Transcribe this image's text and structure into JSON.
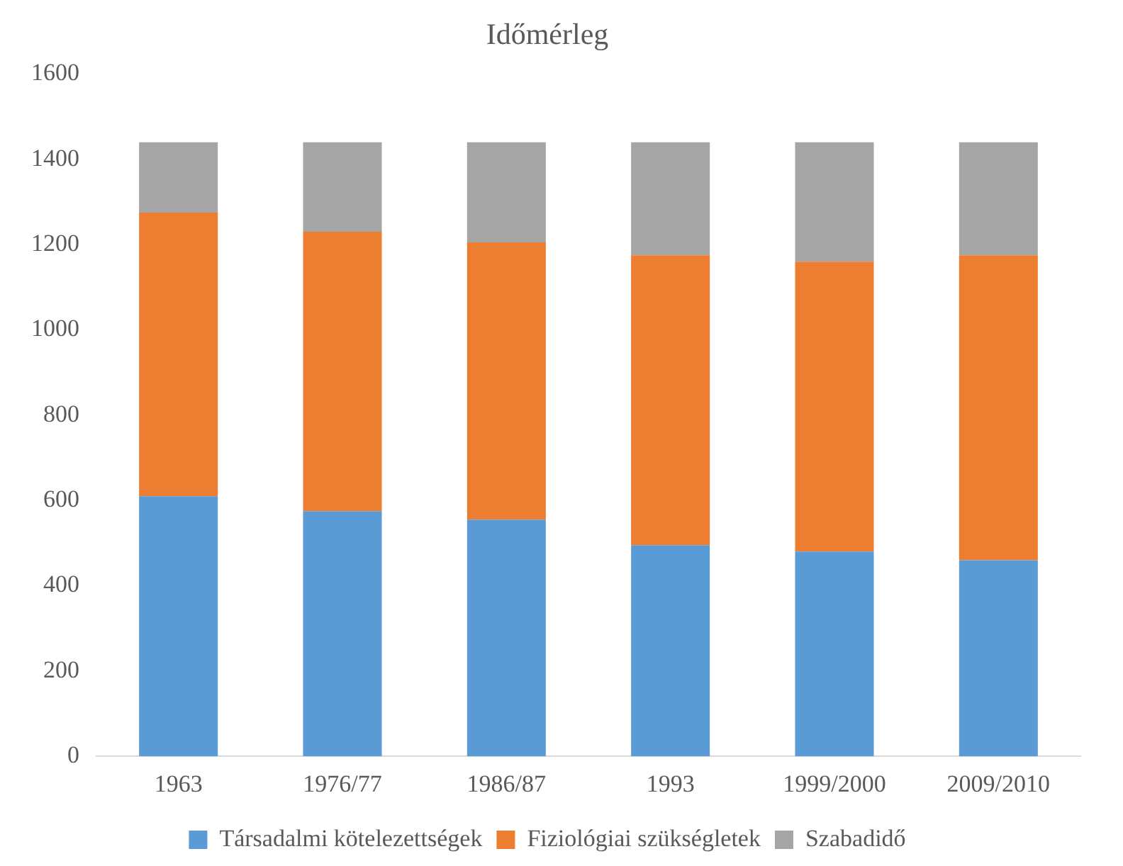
{
  "chart_data": {
    "type": "bar",
    "title": "Időmérleg",
    "stacked": true,
    "categories": [
      "1963",
      "1976/77",
      "1986/87",
      "1993",
      "1999/2000",
      "2009/2010"
    ],
    "series": [
      {
        "name": "Társadalmi kötelezettségek",
        "color": "#5b9bd5",
        "values": [
          610,
          575,
          555,
          495,
          480,
          460
        ]
      },
      {
        "name": "Fiziológiai szükségletek",
        "color": "#ed7d31",
        "values": [
          665,
          655,
          650,
          680,
          680,
          715
        ]
      },
      {
        "name": "Szabadidő",
        "color": "#a5a5a5",
        "values": [
          165,
          210,
          235,
          265,
          280,
          265
        ]
      }
    ],
    "ylim": [
      0,
      1600
    ],
    "yticks": [
      0,
      200,
      400,
      600,
      800,
      1000,
      1200,
      1400,
      1600
    ],
    "grid": false,
    "legend": "bottom"
  }
}
